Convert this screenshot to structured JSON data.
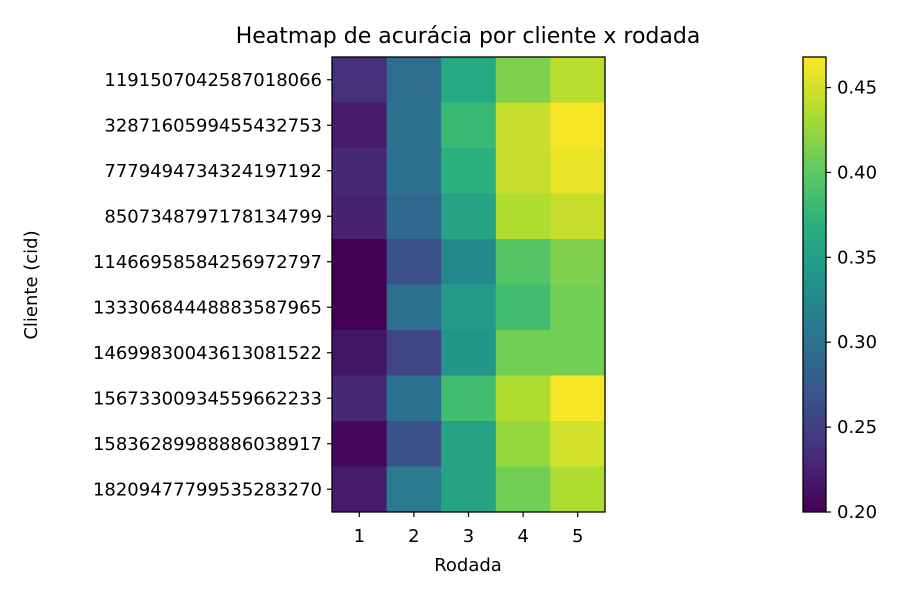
{
  "chart_data": {
    "type": "heatmap",
    "title": "Heatmap de acurácia por cliente x rodada",
    "xlabel": "Rodada",
    "ylabel": "Cliente (cid)",
    "x_categories": [
      "1",
      "2",
      "3",
      "4",
      "5"
    ],
    "y_categories": [
      "1191507042587018066",
      "3287160599455432753",
      "7779494734324197192",
      "8507348797178134799",
      "11466958584256972797",
      "13330684448883587965",
      "14699830043613081522",
      "15673300934559662233",
      "15836289988886038917",
      "18209477799535283270"
    ],
    "values": [
      [
        0.235,
        0.295,
        0.36,
        0.415,
        0.44
      ],
      [
        0.22,
        0.3,
        0.38,
        0.445,
        0.465
      ],
      [
        0.23,
        0.3,
        0.37,
        0.445,
        0.46
      ],
      [
        0.225,
        0.29,
        0.355,
        0.435,
        0.445
      ],
      [
        0.2,
        0.265,
        0.325,
        0.395,
        0.415
      ],
      [
        0.2,
        0.3,
        0.345,
        0.385,
        0.41
      ],
      [
        0.215,
        0.255,
        0.34,
        0.41,
        0.41
      ],
      [
        0.23,
        0.3,
        0.385,
        0.435,
        0.465
      ],
      [
        0.205,
        0.265,
        0.355,
        0.425,
        0.45
      ],
      [
        0.22,
        0.31,
        0.355,
        0.41,
        0.435
      ]
    ],
    "colormap": "viridis",
    "colorbar": {
      "range": [
        0.2,
        0.468
      ],
      "ticks": [
        "0.20",
        "0.25",
        "0.30",
        "0.35",
        "0.40",
        "0.45"
      ],
      "tick_values": [
        0.2,
        0.25,
        0.3,
        0.35,
        0.4,
        0.45
      ]
    }
  }
}
